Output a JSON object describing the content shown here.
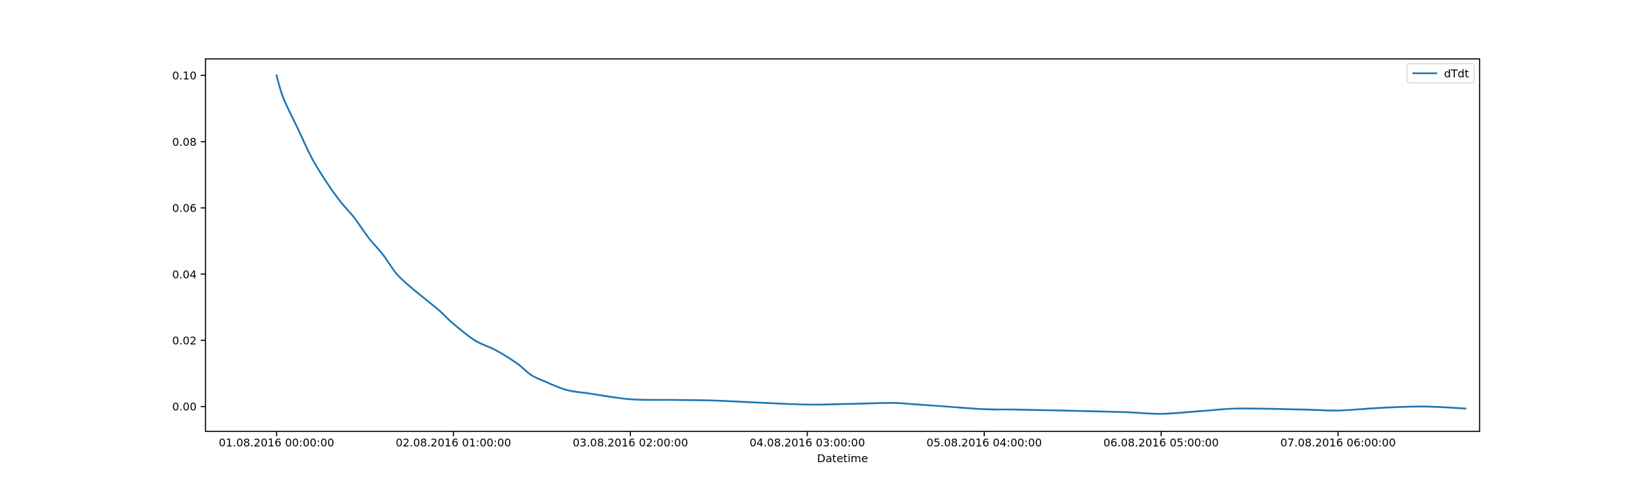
{
  "chart_data": {
    "type": "line",
    "title": "",
    "xlabel": "Datetime",
    "ylabel": "",
    "x_tick_labels": [
      "01.08.2016 00:00:00",
      "02.08.2016 01:00:00",
      "03.08.2016 02:00:00",
      "04.08.2016 03:00:00",
      "05.08.2016 04:00:00",
      "06.08.2016 05:00:00",
      "07.08.2016 06:00:00"
    ],
    "y_tick_labels": [
      "0.10",
      "0.08",
      "0.06",
      "0.04",
      "0.02",
      "0.00"
    ],
    "y_ticks": [
      0.1,
      0.08,
      0.06,
      0.04,
      0.02,
      0.0
    ],
    "xlim": [
      "2016-07-31 13:58",
      "2016-08-08 02:00"
    ],
    "ylim": [
      -0.0075,
      0.105
    ],
    "grid": false,
    "legend_position": "top-right",
    "series": [
      {
        "name": "dTdt",
        "color": "#1f77b4",
        "x": [
          "2016-08-01 00:00",
          "2016-08-01 01:00",
          "2016-08-01 03:00",
          "2016-08-01 05:00",
          "2016-08-01 07:00",
          "2016-08-01 09:00",
          "2016-08-01 11:00",
          "2016-08-01 13:00",
          "2016-08-01 15:00",
          "2016-08-01 17:00",
          "2016-08-01 19:00",
          "2016-08-01 21:00",
          "2016-08-01 23:00",
          "2016-08-02 01:00",
          "2016-08-02 04:00",
          "2016-08-02 07:00",
          "2016-08-02 10:00",
          "2016-08-02 12:00",
          "2016-08-02 14:00",
          "2016-08-02 17:00",
          "2016-08-02 20:00",
          "2016-08-03 02:00",
          "2016-08-03 08:00",
          "2016-08-03 14:00",
          "2016-08-03 20:00",
          "2016-08-04 03:00",
          "2016-08-04 09:00",
          "2016-08-04 15:00",
          "2016-08-04 18:00",
          "2016-08-04 22:00",
          "2016-08-05 04:00",
          "2016-08-05 08:00",
          "2016-08-05 15:00",
          "2016-08-06 00:00",
          "2016-08-06 05:00",
          "2016-08-06 11:00",
          "2016-08-06 16:00",
          "2016-08-07 01:00",
          "2016-08-07 06:00",
          "2016-08-07 12:00",
          "2016-08-07 18:00",
          "2016-08-08 00:00"
        ],
        "values": [
          0.1,
          0.093,
          0.084,
          0.075,
          0.068,
          0.062,
          0.057,
          0.051,
          0.046,
          0.04,
          0.036,
          0.0325,
          0.029,
          0.025,
          0.02,
          0.017,
          0.013,
          0.0095,
          0.0075,
          0.005,
          0.004,
          0.0022,
          0.002,
          0.0018,
          0.0012,
          0.0006,
          0.0008,
          0.0011,
          0.0007,
          0.0001,
          -0.0008,
          -0.0009,
          -0.0012,
          -0.0017,
          -0.0022,
          -0.0013,
          -0.0006,
          -0.0009,
          -0.0012,
          -0.0004,
          0.0,
          -0.0006
        ]
      }
    ]
  }
}
